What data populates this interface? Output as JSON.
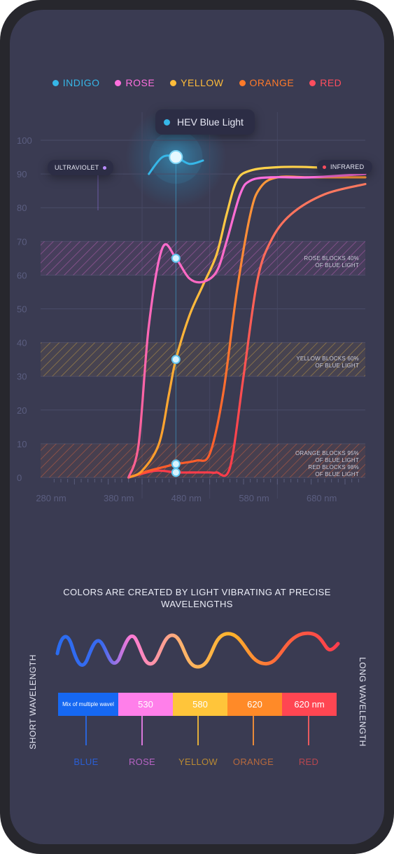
{
  "legend": [
    {
      "name": "INDIGO",
      "color": "#36b7e8"
    },
    {
      "name": "ROSE",
      "color": "#ff6fde"
    },
    {
      "name": "YELLOW",
      "color": "#ffbc3a"
    },
    {
      "name": "ORANGE",
      "color": "#ff7a2a"
    },
    {
      "name": "RED",
      "color": "#ff4d5e"
    }
  ],
  "hev_label": "HEV Blue Light",
  "uv_label": "ULTRAVIOLET",
  "ir_label": "INFRARED",
  "block_notes": {
    "rose": [
      "ROSE BLOCKS 40%",
      "OF BLUE LIGHT"
    ],
    "yellow": [
      "YELLOW BLOCKS 60%",
      "OF BLUE LIGHT"
    ],
    "orange_red": [
      "ORANGE BLOCKS 95%",
      "OF BLUE LIGHT",
      "RED BLOCKS 98%",
      "OF BLUE LIGHT"
    ]
  },
  "chart_data": {
    "type": "line",
    "ylim": [
      0,
      100
    ],
    "yticks": [
      0,
      10,
      20,
      30,
      40,
      50,
      60,
      70,
      80,
      90,
      100
    ],
    "xticks": [
      "280 nm",
      "380 nm",
      "480 nm",
      "580 nm",
      "680 nm"
    ],
    "xlim": [
      250,
      730
    ],
    "grid": true,
    "legend_position": "top",
    "hev_marker_nm": 450,
    "blocked_bands": [
      {
        "name": "rose",
        "y_range": [
          60,
          70
        ],
        "color": "#ff6fde"
      },
      {
        "name": "yellow",
        "y_range": [
          30,
          40
        ],
        "color": "#ffbc3a"
      },
      {
        "name": "orange_red",
        "y_range": [
          0,
          10
        ],
        "color": "#ff7a2a"
      }
    ],
    "series": [
      {
        "name": "INDIGO",
        "x": [
          410,
          430,
          450,
          470,
          490
        ],
        "y": [
          90,
          95,
          95,
          93,
          94
        ]
      },
      {
        "name": "ROSE",
        "x": [
          380,
          395,
          410,
          430,
          450,
          470,
          490,
          510,
          525,
          545,
          560,
          590,
          650,
          730
        ],
        "y": [
          0,
          10,
          45,
          68,
          65,
          59,
          58,
          61,
          70,
          84,
          88,
          89,
          89,
          90
        ]
      },
      {
        "name": "YELLOW",
        "x": [
          380,
          400,
          425,
          440,
          450,
          470,
          490,
          510,
          525,
          540,
          560,
          600,
          650,
          730
        ],
        "y": [
          0,
          2,
          10,
          25,
          35,
          48,
          57,
          66,
          78,
          88,
          91,
          92,
          92,
          91
        ]
      },
      {
        "name": "ORANGE",
        "x": [
          380,
          410,
          430,
          450,
          480,
          500,
          520,
          540,
          560,
          575,
          600,
          650,
          730
        ],
        "y": [
          0,
          2,
          3,
          4,
          5,
          7,
          25,
          55,
          78,
          86,
          89,
          89,
          89
        ]
      },
      {
        "name": "RED",
        "x": [
          380,
          420,
          450,
          480,
          500,
          510,
          530,
          550,
          570,
          590,
          620,
          670,
          730
        ],
        "y": [
          0,
          2,
          1.5,
          1.5,
          1.5,
          1.5,
          3,
          30,
          58,
          70,
          78,
          84,
          87
        ]
      }
    ],
    "hev_points": [
      {
        "series": "ROSE",
        "y": 65
      },
      {
        "series": "YELLOW",
        "y": 35
      },
      {
        "series": "ORANGE",
        "y": 4
      },
      {
        "series": "RED",
        "y": 1.5
      }
    ]
  },
  "wavelength_section": {
    "subtitle": "COLORS ARE CREATED BY LIGHT VIBRATING AT PRECISE WAVELENGTHS",
    "short_label": "SHORT WAVELENGTH",
    "long_label": "LONG WAVELENGTH",
    "cells": [
      {
        "value": "Mix of multiple wavel",
        "color": "#1668f2"
      },
      {
        "value": "530",
        "color": "#ff7fea"
      },
      {
        "value": "580",
        "color": "#ffc53a"
      },
      {
        "value": "620",
        "color": "#ff8a28"
      },
      {
        "value": "620 nm",
        "color": "#ff4652"
      }
    ],
    "names": [
      {
        "name": "BLUE",
        "color": "#2a5ed4"
      },
      {
        "name": "ROSE",
        "color": "#b763c4"
      },
      {
        "name": "YELLOW",
        "color": "#b98a33"
      },
      {
        "name": "ORANGE",
        "color": "#b86a3d"
      },
      {
        "name": "RED",
        "color": "#b8464f"
      }
    ]
  }
}
